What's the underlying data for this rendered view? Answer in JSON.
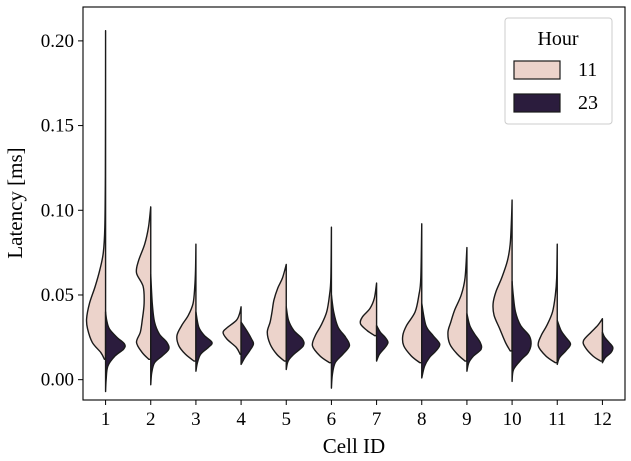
{
  "chart_data": {
    "type": "violin",
    "split": true,
    "xlabel": "Cell ID",
    "ylabel": "Latency [ms]",
    "ylim": [
      -0.012,
      0.22
    ],
    "yticks": [
      0.0,
      0.05,
      0.1,
      0.15,
      0.2
    ],
    "ytick_labels": [
      "0.00",
      "0.05",
      "0.10",
      "0.15",
      "0.20"
    ],
    "categories": [
      "1",
      "2",
      "3",
      "4",
      "5",
      "6",
      "7",
      "8",
      "9",
      "10",
      "11",
      "12"
    ],
    "legend": {
      "title": "Hour",
      "position": "top-right",
      "entries": [
        {
          "label": "11",
          "color": "#ecd3cb"
        },
        {
          "label": "23",
          "color": "#2b1c3d"
        }
      ]
    },
    "series": [
      {
        "name": "11",
        "side": "left",
        "color": "#ecd3cb",
        "violins": [
          {
            "min": 0.012,
            "max": 0.206,
            "profile": [
              [
                0.012,
                0.06
              ],
              [
                0.016,
                0.25
              ],
              [
                0.022,
                0.7
              ],
              [
                0.03,
                0.95
              ],
              [
                0.036,
                1.0
              ],
              [
                0.045,
                0.85
              ],
              [
                0.055,
                0.55
              ],
              [
                0.065,
                0.3
              ],
              [
                0.075,
                0.12
              ],
              [
                0.09,
                0.04
              ],
              [
                0.12,
                0.012
              ],
              [
                0.16,
                0.004
              ],
              [
                0.206,
                0
              ]
            ]
          },
          {
            "min": 0.012,
            "max": 0.102,
            "profile": [
              [
                0.012,
                0.1
              ],
              [
                0.016,
                0.45
              ],
              [
                0.022,
                0.75
              ],
              [
                0.028,
                0.55
              ],
              [
                0.035,
                0.45
              ],
              [
                0.045,
                0.35
              ],
              [
                0.055,
                0.4
              ],
              [
                0.063,
                0.75
              ],
              [
                0.07,
                0.65
              ],
              [
                0.08,
                0.32
              ],
              [
                0.09,
                0.12
              ],
              [
                0.102,
                0
              ]
            ]
          },
          {
            "min": 0.011,
            "max": 0.08,
            "profile": [
              [
                0.011,
                0.1
              ],
              [
                0.015,
                0.55
              ],
              [
                0.02,
                0.9
              ],
              [
                0.026,
                1.0
              ],
              [
                0.032,
                0.75
              ],
              [
                0.038,
                0.4
              ],
              [
                0.045,
                0.15
              ],
              [
                0.055,
                0.06
              ],
              [
                0.065,
                0.02
              ],
              [
                0.08,
                0
              ]
            ]
          },
          {
            "min": 0.015,
            "max": 0.043,
            "profile": [
              [
                0.015,
                0.05
              ],
              [
                0.019,
                0.25
              ],
              [
                0.024,
                0.75
              ],
              [
                0.028,
                0.95
              ],
              [
                0.031,
                0.7
              ],
              [
                0.035,
                0.25
              ],
              [
                0.039,
                0.08
              ],
              [
                0.043,
                0
              ]
            ]
          },
          {
            "min": 0.011,
            "max": 0.068,
            "profile": [
              [
                0.011,
                0.1
              ],
              [
                0.015,
                0.5
              ],
              [
                0.021,
                0.85
              ],
              [
                0.028,
                1.0
              ],
              [
                0.034,
                0.85
              ],
              [
                0.04,
                0.75
              ],
              [
                0.047,
                0.65
              ],
              [
                0.054,
                0.45
              ],
              [
                0.06,
                0.2
              ],
              [
                0.068,
                0
              ]
            ]
          },
          {
            "min": 0.01,
            "max": 0.09,
            "profile": [
              [
                0.01,
                0.1
              ],
              [
                0.014,
                0.6
              ],
              [
                0.02,
                1.0
              ],
              [
                0.026,
                0.85
              ],
              [
                0.032,
                0.55
              ],
              [
                0.04,
                0.25
              ],
              [
                0.05,
                0.1
              ],
              [
                0.06,
                0.03
              ],
              [
                0.09,
                0
              ]
            ]
          },
          {
            "min": 0.026,
            "max": 0.057,
            "profile": [
              [
                0.026,
                0.1
              ],
              [
                0.029,
                0.5
              ],
              [
                0.033,
                0.85
              ],
              [
                0.037,
                0.75
              ],
              [
                0.042,
                0.35
              ],
              [
                0.048,
                0.12
              ],
              [
                0.057,
                0
              ]
            ]
          },
          {
            "min": 0.01,
            "max": 0.092,
            "profile": [
              [
                0.01,
                0.1
              ],
              [
                0.014,
                0.55
              ],
              [
                0.02,
                0.95
              ],
              [
                0.026,
                1.0
              ],
              [
                0.032,
                0.8
              ],
              [
                0.04,
                0.35
              ],
              [
                0.05,
                0.15
              ],
              [
                0.06,
                0.05
              ],
              [
                0.092,
                0
              ]
            ]
          },
          {
            "min": 0.011,
            "max": 0.078,
            "profile": [
              [
                0.011,
                0.1
              ],
              [
                0.015,
                0.5
              ],
              [
                0.021,
                0.9
              ],
              [
                0.028,
                1.0
              ],
              [
                0.034,
                0.85
              ],
              [
                0.041,
                0.65
              ],
              [
                0.05,
                0.3
              ],
              [
                0.06,
                0.1
              ],
              [
                0.078,
                0
              ]
            ]
          },
          {
            "min": 0.017,
            "max": 0.106,
            "profile": [
              [
                0.017,
                0.1
              ],
              [
                0.022,
                0.35
              ],
              [
                0.03,
                0.65
              ],
              [
                0.038,
                0.95
              ],
              [
                0.045,
                1.0
              ],
              [
                0.052,
                0.85
              ],
              [
                0.06,
                0.55
              ],
              [
                0.07,
                0.25
              ],
              [
                0.08,
                0.1
              ],
              [
                0.095,
                0.03
              ],
              [
                0.106,
                0
              ]
            ]
          },
          {
            "min": 0.01,
            "max": 0.08,
            "profile": [
              [
                0.01,
                0.1
              ],
              [
                0.014,
                0.6
              ],
              [
                0.02,
                1.0
              ],
              [
                0.026,
                0.85
              ],
              [
                0.032,
                0.55
              ],
              [
                0.04,
                0.25
              ],
              [
                0.05,
                0.1
              ],
              [
                0.06,
                0.03
              ],
              [
                0.08,
                0
              ]
            ]
          },
          {
            "min": 0.011,
            "max": 0.036,
            "profile": [
              [
                0.011,
                0.1
              ],
              [
                0.014,
                0.5
              ],
              [
                0.019,
                0.9
              ],
              [
                0.023,
                1.0
              ],
              [
                0.028,
                0.6
              ],
              [
                0.032,
                0.25
              ],
              [
                0.036,
                0
              ]
            ]
          }
        ]
      },
      {
        "name": "23",
        "side": "right",
        "color": "#2b1c3d",
        "violins": [
          {
            "min": -0.007,
            "max": 0.04,
            "profile": [
              [
                -0.007,
                0
              ],
              [
                0.0,
                0.03
              ],
              [
                0.008,
                0.12
              ],
              [
                0.014,
                0.5
              ],
              [
                0.018,
                0.95
              ],
              [
                0.021,
                1.0
              ],
              [
                0.025,
                0.6
              ],
              [
                0.03,
                0.2
              ],
              [
                0.035,
                0.06
              ],
              [
                0.04,
                0
              ]
            ]
          },
          {
            "min": -0.003,
            "max": 0.062,
            "profile": [
              [
                -0.003,
                0
              ],
              [
                0.004,
                0.05
              ],
              [
                0.01,
                0.2
              ],
              [
                0.014,
                0.6
              ],
              [
                0.018,
                0.95
              ],
              [
                0.022,
                0.85
              ],
              [
                0.027,
                0.45
              ],
              [
                0.034,
                0.2
              ],
              [
                0.045,
                0.08
              ],
              [
                0.062,
                0
              ]
            ]
          },
          {
            "min": 0.005,
            "max": 0.04,
            "profile": [
              [
                0.005,
                0
              ],
              [
                0.01,
                0.08
              ],
              [
                0.015,
                0.25
              ],
              [
                0.019,
                0.65
              ],
              [
                0.022,
                0.85
              ],
              [
                0.026,
                0.45
              ],
              [
                0.031,
                0.15
              ],
              [
                0.04,
                0
              ]
            ]
          },
          {
            "min": 0.009,
            "max": 0.034,
            "profile": [
              [
                0.009,
                0
              ],
              [
                0.013,
                0.2
              ],
              [
                0.017,
                0.45
              ],
              [
                0.021,
                0.65
              ],
              [
                0.024,
                0.55
              ],
              [
                0.028,
                0.35
              ],
              [
                0.034,
                0
              ]
            ]
          },
          {
            "min": 0.006,
            "max": 0.043,
            "profile": [
              [
                0.006,
                0
              ],
              [
                0.011,
                0.1
              ],
              [
                0.015,
                0.4
              ],
              [
                0.02,
                0.9
              ],
              [
                0.024,
                0.85
              ],
              [
                0.029,
                0.4
              ],
              [
                0.035,
                0.12
              ],
              [
                0.043,
                0
              ]
            ]
          },
          {
            "min": -0.005,
            "max": 0.05,
            "profile": [
              [
                -0.005,
                0
              ],
              [
                0.003,
                0.05
              ],
              [
                0.01,
                0.2
              ],
              [
                0.015,
                0.6
              ],
              [
                0.02,
                0.95
              ],
              [
                0.025,
                0.75
              ],
              [
                0.031,
                0.35
              ],
              [
                0.04,
                0.12
              ],
              [
                0.05,
                0
              ]
            ]
          },
          {
            "min": 0.011,
            "max": 0.032,
            "profile": [
              [
                0.011,
                0
              ],
              [
                0.015,
                0.15
              ],
              [
                0.019,
                0.45
              ],
              [
                0.022,
                0.6
              ],
              [
                0.025,
                0.45
              ],
              [
                0.028,
                0.2
              ],
              [
                0.032,
                0
              ]
            ]
          },
          {
            "min": 0.001,
            "max": 0.045,
            "profile": [
              [
                0.001,
                0
              ],
              [
                0.008,
                0.15
              ],
              [
                0.013,
                0.4
              ],
              [
                0.017,
                0.75
              ],
              [
                0.021,
                0.95
              ],
              [
                0.026,
                0.6
              ],
              [
                0.032,
                0.22
              ],
              [
                0.045,
                0
              ]
            ]
          },
          {
            "min": 0.005,
            "max": 0.039,
            "profile": [
              [
                0.005,
                0
              ],
              [
                0.01,
                0.1
              ],
              [
                0.014,
                0.35
              ],
              [
                0.018,
                0.75
              ],
              [
                0.022,
                0.7
              ],
              [
                0.027,
                0.4
              ],
              [
                0.032,
                0.15
              ],
              [
                0.039,
                0
              ]
            ]
          },
          {
            "min": -0.001,
            "max": 0.058,
            "profile": [
              [
                -0.001,
                0
              ],
              [
                0.006,
                0.08
              ],
              [
                0.012,
                0.5
              ],
              [
                0.016,
                0.85
              ],
              [
                0.021,
                1.0
              ],
              [
                0.026,
                0.9
              ],
              [
                0.032,
                0.45
              ],
              [
                0.04,
                0.18
              ],
              [
                0.05,
                0.06
              ],
              [
                0.058,
                0
              ]
            ]
          },
          {
            "min": 0.009,
            "max": 0.035,
            "profile": [
              [
                0.009,
                0
              ],
              [
                0.013,
                0.12
              ],
              [
                0.017,
                0.45
              ],
              [
                0.021,
                0.7
              ],
              [
                0.025,
                0.45
              ],
              [
                0.029,
                0.2
              ],
              [
                0.035,
                0
              ]
            ]
          },
          {
            "min": 0.01,
            "max": 0.028,
            "profile": [
              [
                0.01,
                0
              ],
              [
                0.013,
                0.15
              ],
              [
                0.016,
                0.45
              ],
              [
                0.019,
                0.55
              ],
              [
                0.022,
                0.35
              ],
              [
                0.025,
                0.12
              ],
              [
                0.028,
                0
              ]
            ]
          }
        ]
      }
    ]
  }
}
